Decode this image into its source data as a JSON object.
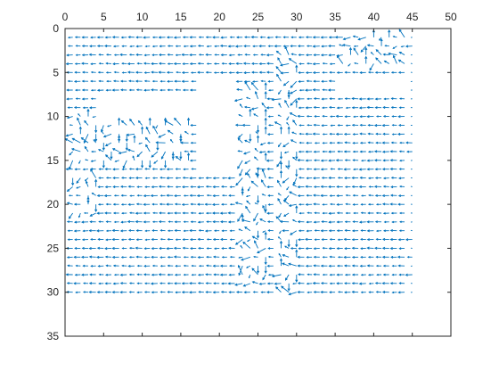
{
  "chart_data": {
    "type": "quiver",
    "title": "",
    "xlabel": "",
    "ylabel": "",
    "xlim": [
      0,
      50
    ],
    "ylim": [
      0,
      35
    ],
    "y_axis_reversed": true,
    "x_axis_location": "top",
    "grid": false,
    "xticks": [
      "0",
      "5",
      "10",
      "15",
      "20",
      "25",
      "30",
      "35",
      "40",
      "45",
      "50"
    ],
    "yticks": [
      "0",
      "5",
      "10",
      "15",
      "20",
      "25",
      "30",
      "35"
    ],
    "grid_x_range": [
      1,
      45
    ],
    "grid_y_range": [
      1,
      30
    ],
    "dominant_direction": "left",
    "arrow_color": "#0072BD",
    "disturbed_zones": [
      {
        "name": "left-mid",
        "x": [
          1,
          16
        ],
        "y": [
          10,
          15
        ]
      },
      {
        "name": "left-bottom",
        "x": [
          1,
          4
        ],
        "y": [
          17,
          21
        ]
      },
      {
        "name": "channel-a",
        "x": [
          23,
          26
        ],
        "y": [
          7,
          29
        ]
      },
      {
        "name": "channel-b",
        "x": [
          28,
          30
        ],
        "y": [
          3,
          31
        ]
      },
      {
        "name": "top-right",
        "x": [
          36,
          44
        ],
        "y": [
          1,
          4
        ]
      }
    ],
    "blank_regions": [
      {
        "x": [
          18,
          22
        ],
        "y": [
          6,
          16
        ]
      },
      {
        "x": [
          5,
          17
        ],
        "y": [
          8,
          10
        ]
      },
      {
        "x": [
          36,
          44
        ],
        "y": [
          6,
          7
        ]
      }
    ]
  }
}
